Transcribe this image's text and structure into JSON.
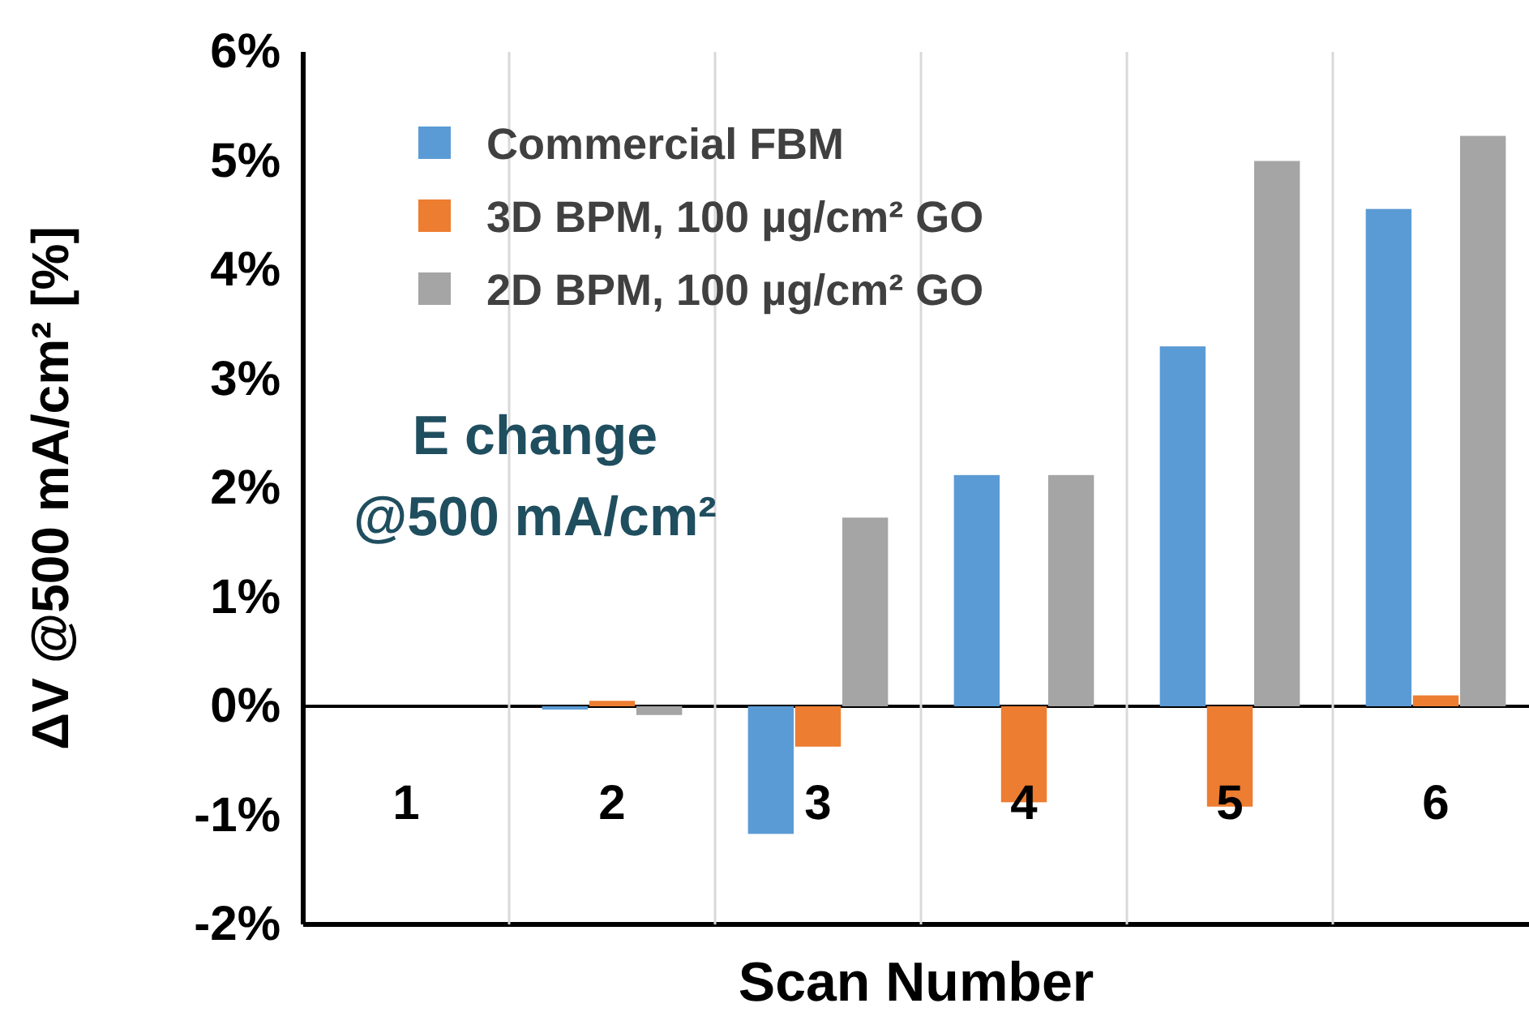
{
  "chart_data": {
    "type": "bar",
    "xlabel": "Scan Number",
    "ylabel": "ΔV @500 mA/cm² [%]",
    "categories": [
      "1",
      "2",
      "3",
      "4",
      "5",
      "6"
    ],
    "series": [
      {
        "name": "Commercial FBM",
        "color": "#5b9bd5",
        "values": [
          0,
          -0.03,
          -1.17,
          2.12,
          3.3,
          4.56
        ]
      },
      {
        "name": "3D BPM, 100 µg/cm² GO",
        "color": "#ed7d31",
        "values": [
          0,
          0.05,
          -0.37,
          -0.88,
          -0.92,
          0.1
        ]
      },
      {
        "name": "2D BPM, 100 µg/cm² GO",
        "color": "#a5a5a5",
        "values": [
          0,
          -0.08,
          1.73,
          2.12,
          5.0,
          5.23
        ]
      }
    ],
    "ylim": [
      -2,
      6
    ],
    "yticks": [
      {
        "value": -2,
        "label": "-2%"
      },
      {
        "value": -1,
        "label": "-1%"
      },
      {
        "value": 0,
        "label": "0%"
      },
      {
        "value": 1,
        "label": "1%"
      },
      {
        "value": 2,
        "label": "2%"
      },
      {
        "value": 3,
        "label": "3%"
      },
      {
        "value": 4,
        "label": "4%"
      },
      {
        "value": 5,
        "label": "5%"
      },
      {
        "value": 6,
        "label": "6%"
      }
    ],
    "grid": "x",
    "legend": "top left",
    "annotations": [
      "E change\n@500 mA/cm²"
    ]
  }
}
